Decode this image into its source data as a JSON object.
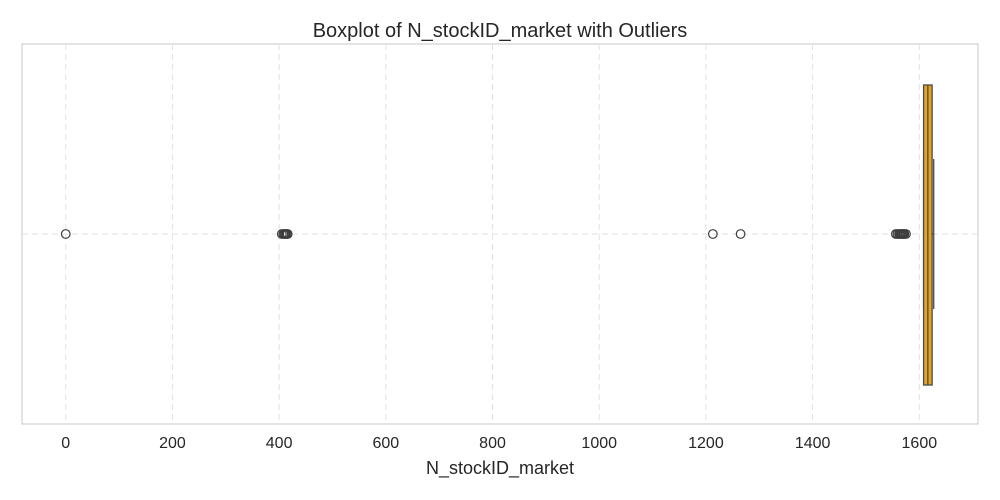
{
  "chart_data": {
    "type": "boxplot",
    "title": "Boxplot of N_stockID_market with Outliers",
    "xlabel": "N_stockID_market",
    "ylabel": "",
    "orientation": "horizontal",
    "xlim": [
      -82,
      1710
    ],
    "xticks": [
      0,
      200,
      400,
      600,
      800,
      1000,
      1200,
      1400,
      1600
    ],
    "grid": true,
    "box": {
      "q1": 1608,
      "median": 1616,
      "q3": 1624,
      "whisker_low": 1608,
      "whisker_high": 1627
    },
    "outliers": [
      0,
      405,
      408,
      410,
      412,
      414,
      416,
      1213,
      1265,
      1556,
      1559,
      1562,
      1564,
      1566,
      1568,
      1570,
      1572,
      1575
    ],
    "box_color": "#E8A420",
    "edge_color": "#4a4a4a"
  }
}
